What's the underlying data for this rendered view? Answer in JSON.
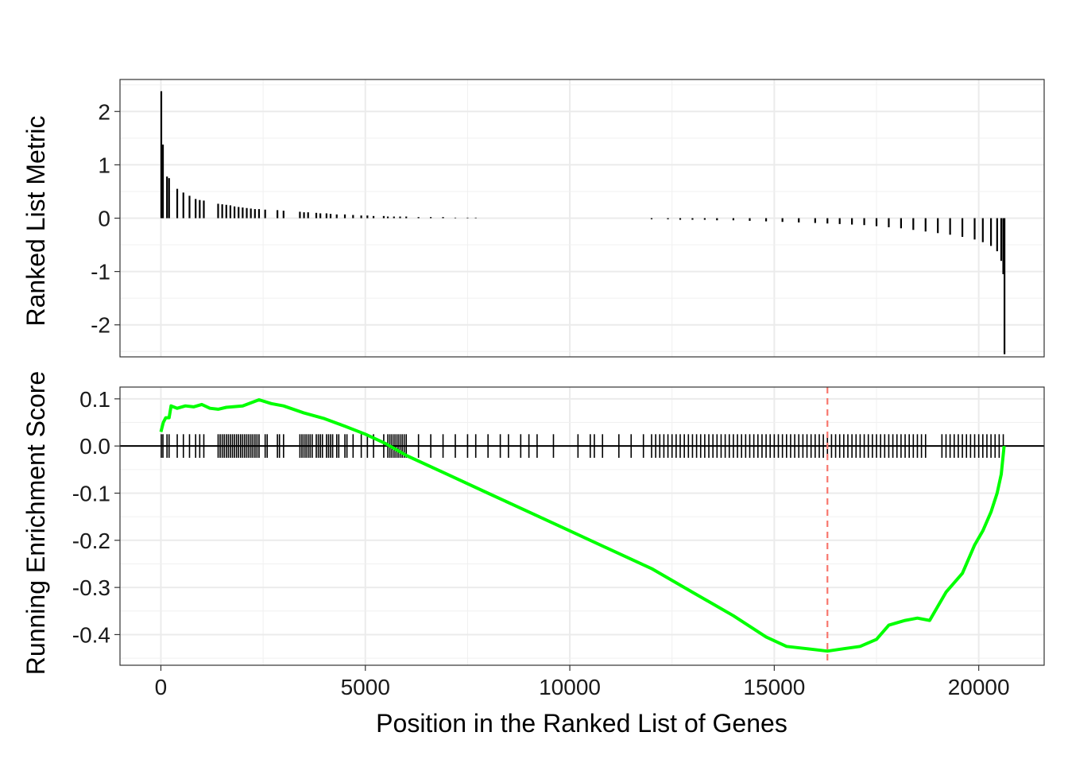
{
  "chart_data": [
    {
      "panel": "top",
      "type": "bar",
      "ylabel": "Ranked List Metric",
      "xlim": [
        -1000,
        21600
      ],
      "ylim": [
        -2.6,
        2.6
      ],
      "yticks": [
        2,
        1,
        0,
        -1,
        -2
      ],
      "ytick_labels": [
        "2",
        "1",
        "0",
        "-1",
        "-2"
      ],
      "grid": true,
      "bar_color": "#000000",
      "bars": [
        [
          10,
          2.38
        ],
        [
          50,
          1.38
        ],
        [
          150,
          0.78
        ],
        [
          200,
          0.75
        ],
        [
          400,
          0.55
        ],
        [
          550,
          0.48
        ],
        [
          700,
          0.42
        ],
        [
          850,
          0.36
        ],
        [
          950,
          0.34
        ],
        [
          1050,
          0.33
        ],
        [
          1400,
          0.27
        ],
        [
          1500,
          0.26
        ],
        [
          1600,
          0.25
        ],
        [
          1700,
          0.24
        ],
        [
          1800,
          0.22
        ],
        [
          1900,
          0.21
        ],
        [
          2000,
          0.2
        ],
        [
          2100,
          0.19
        ],
        [
          2200,
          0.18
        ],
        [
          2300,
          0.17
        ],
        [
          2400,
          0.17
        ],
        [
          2550,
          0.16
        ],
        [
          2850,
          0.15
        ],
        [
          3000,
          0.14
        ],
        [
          3400,
          0.12
        ],
        [
          3500,
          0.11
        ],
        [
          3600,
          0.11
        ],
        [
          3800,
          0.1
        ],
        [
          3900,
          0.09
        ],
        [
          4050,
          0.09
        ],
        [
          4150,
          0.08
        ],
        [
          4300,
          0.07
        ],
        [
          4500,
          0.07
        ],
        [
          4700,
          0.06
        ],
        [
          4900,
          0.05
        ],
        [
          5050,
          0.05
        ],
        [
          5200,
          0.04
        ],
        [
          5450,
          0.04
        ],
        [
          5550,
          0.03
        ],
        [
          5700,
          0.03
        ],
        [
          5850,
          0.03
        ],
        [
          6000,
          0.03
        ],
        [
          6300,
          0.02
        ],
        [
          6600,
          0.02
        ],
        [
          6900,
          0.02
        ],
        [
          7200,
          0.01
        ],
        [
          7500,
          0.01
        ],
        [
          7700,
          0.01
        ],
        [
          12000,
          -0.02
        ],
        [
          12400,
          -0.02
        ],
        [
          12700,
          -0.03
        ],
        [
          13000,
          -0.03
        ],
        [
          13300,
          -0.03
        ],
        [
          13600,
          -0.04
        ],
        [
          14000,
          -0.04
        ],
        [
          14400,
          -0.05
        ],
        [
          14800,
          -0.06
        ],
        [
          15200,
          -0.07
        ],
        [
          15600,
          -0.08
        ],
        [
          16000,
          -0.09
        ],
        [
          16300,
          -0.1
        ],
        [
          16600,
          -0.11
        ],
        [
          16900,
          -0.12
        ],
        [
          17200,
          -0.13
        ],
        [
          17500,
          -0.15
        ],
        [
          17800,
          -0.17
        ],
        [
          18100,
          -0.19
        ],
        [
          18400,
          -0.22
        ],
        [
          18700,
          -0.25
        ],
        [
          19000,
          -0.28
        ],
        [
          19300,
          -0.31
        ],
        [
          19600,
          -0.35
        ],
        [
          19900,
          -0.4
        ],
        [
          20100,
          -0.45
        ],
        [
          20300,
          -0.52
        ],
        [
          20450,
          -0.62
        ],
        [
          20550,
          -0.8
        ],
        [
          20600,
          -1.05
        ],
        [
          20630,
          -2.55
        ]
      ]
    },
    {
      "panel": "bottom",
      "type": "line",
      "xlabel": "Position in the Ranked List of Genes",
      "ylabel": "Running Enrichment Score",
      "xlim": [
        -1000,
        21600
      ],
      "ylim": [
        -0.465,
        0.125
      ],
      "xticks": [
        0,
        5000,
        10000,
        15000,
        20000
      ],
      "xtick_labels": [
        "0",
        "5000",
        "10000",
        "15000",
        "20000"
      ],
      "yticks": [
        0.1,
        0.0,
        -0.1,
        -0.2,
        -0.3,
        -0.4
      ],
      "ytick_labels": [
        "0.1",
        "0.0",
        "-0.1",
        "-0.2",
        "-0.3",
        "-0.4"
      ],
      "grid": true,
      "line_color": "#00ff00",
      "vline_x": 16300,
      "vline_color": "#f8766d",
      "hline_y": 0,
      "series": [
        {
          "x": [
            0,
            60,
            120,
            200,
            250,
            400,
            600,
            800,
            1000,
            1200,
            1400,
            1600,
            2000,
            2400,
            2700,
            3000,
            3500,
            4000,
            4500,
            5000,
            5500,
            6000,
            7000,
            8000,
            9000,
            10000,
            11000,
            12000,
            13000,
            14000,
            14800,
            15300,
            15800,
            16300,
            16700,
            17100,
            17500,
            17800,
            18200,
            18500,
            18800,
            19200,
            19600,
            19900,
            20100,
            20300,
            20450,
            20550,
            20620
          ],
          "y": [
            0.03,
            0.05,
            0.06,
            0.06,
            0.085,
            0.08,
            0.085,
            0.083,
            0.088,
            0.08,
            0.078,
            0.082,
            0.085,
            0.098,
            0.09,
            0.085,
            0.07,
            0.058,
            0.042,
            0.025,
            0.005,
            -0.02,
            -0.06,
            -0.1,
            -0.14,
            -0.18,
            -0.22,
            -0.26,
            -0.31,
            -0.36,
            -0.405,
            -0.425,
            -0.43,
            -0.435,
            -0.43,
            -0.425,
            -0.41,
            -0.38,
            -0.37,
            -0.365,
            -0.37,
            -0.31,
            -0.27,
            -0.21,
            -0.18,
            -0.14,
            -0.1,
            -0.06,
            0.0
          ]
        }
      ],
      "hits": [
        10,
        50,
        150,
        200,
        400,
        550,
        700,
        850,
        950,
        1050,
        1400,
        1450,
        1500,
        1550,
        1600,
        1650,
        1700,
        1750,
        1800,
        1850,
        1900,
        1950,
        2000,
        2050,
        2100,
        2150,
        2200,
        2250,
        2300,
        2350,
        2400,
        2550,
        2600,
        2850,
        2900,
        3000,
        3400,
        3450,
        3500,
        3550,
        3600,
        3650,
        3700,
        3800,
        3850,
        3900,
        3950,
        4050,
        4100,
        4150,
        4200,
        4300,
        4350,
        4500,
        4550,
        4700,
        4900,
        5050,
        5200,
        5450,
        5550,
        5600,
        5650,
        5700,
        5750,
        5800,
        5850,
        5900,
        5950,
        6000,
        6300,
        6600,
        6900,
        7200,
        7500,
        7700,
        8000,
        8300,
        8500,
        8800,
        9000,
        9200,
        9600,
        10200,
        10500,
        10600,
        10800,
        11200,
        11500,
        11800,
        12000,
        12100,
        12200,
        12300,
        12400,
        12500,
        12600,
        12700,
        12800,
        12900,
        13000,
        13100,
        13200,
        13300,
        13400,
        13500,
        13600,
        13700,
        13800,
        13900,
        14000,
        14100,
        14200,
        14300,
        14400,
        14500,
        14600,
        14700,
        14800,
        14900,
        15000,
        15100,
        15200,
        15300,
        15400,
        15500,
        15600,
        15700,
        15800,
        15900,
        16000,
        16100,
        16200,
        16300,
        16400,
        16500,
        16600,
        16700,
        16800,
        16900,
        17000,
        17100,
        17200,
        17300,
        17400,
        17500,
        17600,
        17700,
        17800,
        17900,
        18000,
        18100,
        18200,
        18300,
        18400,
        18500,
        18600,
        18700,
        19100,
        19200,
        19300,
        19400,
        19500,
        19600,
        19700,
        19800,
        19900,
        20000,
        20100,
        20200,
        20300,
        20400,
        20500,
        20600
      ]
    }
  ]
}
